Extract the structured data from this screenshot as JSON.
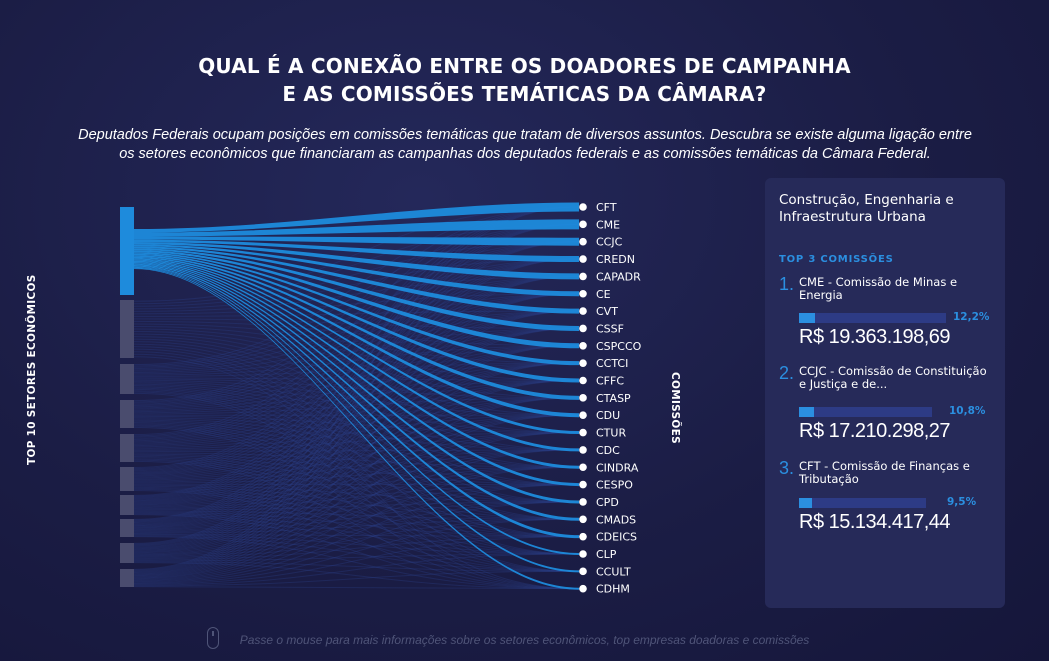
{
  "header": {
    "title_line1": "QUAL É A CONEXÃO ENTRE OS DOADORES DE CAMPANHA",
    "title_line2": "E AS COMISSÕES TEMÁTICAS DA CÂMARA?",
    "subtitle_line1": "Deputados Federais ocupam posições em comissões temáticas que tratam de diversos assuntos. Descubra se existe alguma ligação entre",
    "subtitle_line2": "os setores econômicos que financiaram as campanhas dos deputados federais e as comissões temáticas da Câmara Federal."
  },
  "axes": {
    "left_label": "TOP 10 SETORES ECONÔMICOS",
    "right_label": "COMISSÕES"
  },
  "colors": {
    "accent": "#1e8bdc",
    "sector_inactive": "#4a4c6e",
    "link_inactive": "#2a3f86",
    "panel_bg": "#262a59"
  },
  "diagram": {
    "selected_sector_index": 0,
    "sector_count": 10,
    "commissions": [
      "CFT",
      "CME",
      "CCJC",
      "CREDN",
      "CAPADR",
      "CE",
      "CVT",
      "CSSF",
      "CSPCCO",
      "CCTCI",
      "CFFC",
      "CTASP",
      "CDU",
      "CTUR",
      "CDC",
      "CINDRA",
      "CESPO",
      "CPD",
      "CMADS",
      "CDEICS",
      "CLP",
      "CCULT",
      "CDHM"
    ]
  },
  "panel": {
    "sector_name": "Construção, Engenharia e Infraestrutura Urbana",
    "top_label": "TOP 3 COMISSÕES",
    "items": [
      {
        "num": "1.",
        "label": "CME - Comissão de Minas e Energia",
        "pct_text": "12,2%",
        "pct": 12.2,
        "value": "R$ 19.363.198,69"
      },
      {
        "num": "2.",
        "label": "CCJC - Comissão de Constituição e Justiça e de...",
        "pct_text": "10,8%",
        "pct": 10.8,
        "value": "R$ 17.210.298,27"
      },
      {
        "num": "3.",
        "label": "CFT - Comissão de Finanças e Tributação",
        "pct_text": "9,5%",
        "pct": 9.5,
        "value": "R$ 15.134.417,44"
      }
    ]
  },
  "footer": {
    "hint": "Passe o mouse para mais informações sobre os setores econômicos, top empresas doadoras e comissões"
  }
}
